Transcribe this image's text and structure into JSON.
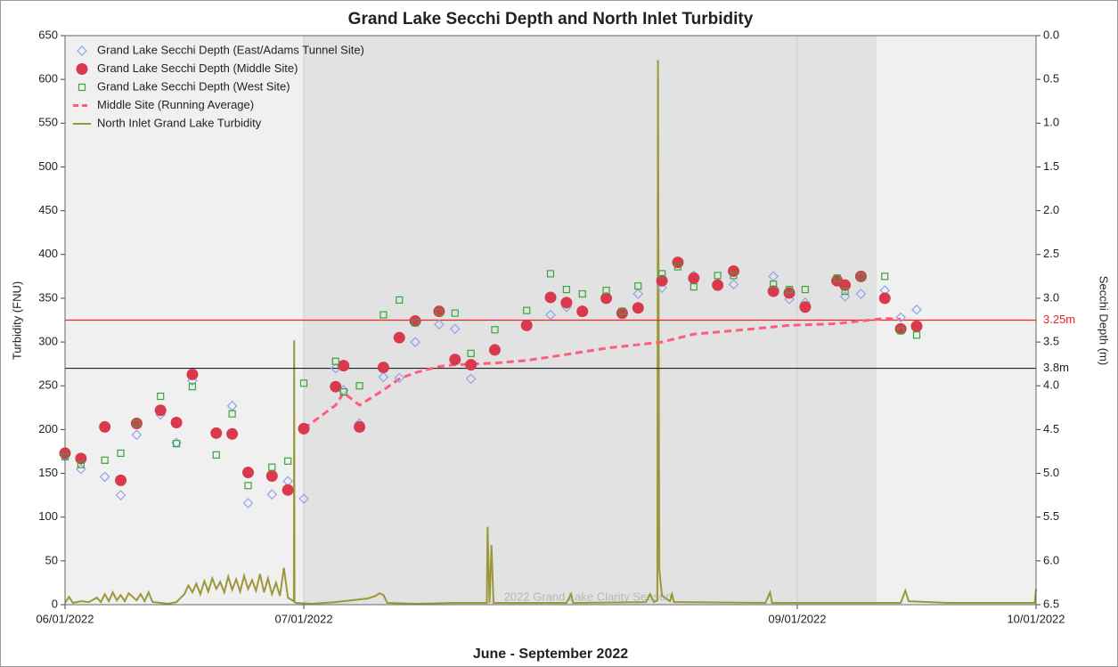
{
  "chart_data": {
    "type": "scatter",
    "title": "Grand Lake Secchi Depth and North Inlet Turbidity",
    "xlabel": "June - September 2022",
    "ylabel": "Turbidity (FNU)",
    "y2label": "Secchi Depth (m)",
    "annotation": "2022 Grand Lake Clarity Season",
    "xlim": [
      "2022-06-01",
      "2022-10-01"
    ],
    "xticks": [
      {
        "value": "2022-06-01",
        "label": "06/01/2022"
      },
      {
        "value": "2022-07-01",
        "label": "07/01/2022"
      },
      {
        "value": "2022-09-01",
        "label": "09/01/2022"
      },
      {
        "value": "2022-10-01",
        "label": "10/01/2022"
      }
    ],
    "xgrid": true,
    "ylim": [
      0,
      650
    ],
    "yticks": [
      0,
      50,
      100,
      150,
      200,
      250,
      300,
      350,
      400,
      450,
      500,
      550,
      600,
      650
    ],
    "y2lim": [
      0,
      6.5
    ],
    "y2_inverted": true,
    "y2ticks": [
      {
        "value": 0,
        "label": "0.0"
      },
      0.5,
      {
        "value": 1,
        "label": "1.0"
      },
      1.5,
      {
        "value": 2,
        "label": "2.0"
      },
      2.5,
      {
        "value": 3,
        "label": "3.0"
      },
      3.5,
      {
        "value": 4,
        "label": "4.0"
      },
      4.5,
      {
        "value": 5,
        "label": "5.0"
      },
      5.5,
      {
        "value": 6,
        "label": "6.0"
      },
      6.5
    ],
    "shaded_range": [
      "2022-07-01",
      "2022-09-11"
    ],
    "legend": "upper left",
    "reference_lines": [
      {
        "value": 3.25,
        "label": "3.25m",
        "color": "#e8262e",
        "axis": "y2"
      },
      {
        "value": 3.8,
        "label": "3.8m",
        "color": "#222222",
        "axis": "y2"
      }
    ],
    "series": [
      {
        "name": "Grand Lake Secchi Depth (East/Adams Tunnel Site)",
        "color": "#8ea3e8",
        "marker": "diamond",
        "axis": "y2",
        "x": [
          "2022-06-01",
          "2022-06-03",
          "2022-06-06",
          "2022-06-08",
          "2022-06-10",
          "2022-06-13",
          "2022-06-15",
          "2022-06-17",
          "2022-06-20",
          "2022-06-22",
          "2022-06-24",
          "2022-06-27",
          "2022-06-29",
          "2022-07-01",
          "2022-07-05",
          "2022-07-06",
          "2022-07-08",
          "2022-07-11",
          "2022-07-13",
          "2022-07-15",
          "2022-07-18",
          "2022-07-20",
          "2022-07-22",
          "2022-08-01",
          "2022-08-03",
          "2022-08-12",
          "2022-08-15",
          "2022-08-19",
          "2022-08-24",
          "2022-08-29",
          "2022-08-31",
          "2022-09-02",
          "2022-09-06",
          "2022-09-07",
          "2022-09-09",
          "2022-09-12",
          "2022-09-14",
          "2022-09-16"
        ],
        "values": [
          4.8,
          4.95,
          5.04,
          5.25,
          4.56,
          4.33,
          4.65,
          3.94,
          4.54,
          4.23,
          5.34,
          5.24,
          5.09,
          5.29,
          3.8,
          4.05,
          4.43,
          3.9,
          3.91,
          3.5,
          3.3,
          3.35,
          3.92,
          3.19,
          3.1,
          2.95,
          2.88,
          2.74,
          2.84,
          2.75,
          3.01,
          3.05,
          2.78,
          2.98,
          2.95,
          2.91,
          3.22,
          3.13
        ]
      },
      {
        "name": "Grand Lake Secchi Depth (Middle Site)",
        "color": "#d9394d",
        "marker": "circle",
        "axis": "y2",
        "x": [
          "2022-06-01",
          "2022-06-03",
          "2022-06-06",
          "2022-06-08",
          "2022-06-10",
          "2022-06-13",
          "2022-06-15",
          "2022-06-17",
          "2022-06-20",
          "2022-06-22",
          "2022-06-24",
          "2022-06-27",
          "2022-06-29",
          "2022-07-01",
          "2022-07-05",
          "2022-07-06",
          "2022-07-08",
          "2022-07-11",
          "2022-07-13",
          "2022-07-15",
          "2022-07-18",
          "2022-07-20",
          "2022-07-22",
          "2022-07-25",
          "2022-07-29",
          "2022-08-01",
          "2022-08-03",
          "2022-08-05",
          "2022-08-08",
          "2022-08-10",
          "2022-08-12",
          "2022-08-15",
          "2022-08-17",
          "2022-08-19",
          "2022-08-22",
          "2022-08-24",
          "2022-08-29",
          "2022-08-31",
          "2022-09-02",
          "2022-09-06",
          "2022-09-07",
          "2022-09-09",
          "2022-09-12",
          "2022-09-14",
          "2022-09-16"
        ],
        "values": [
          4.77,
          4.83,
          4.47,
          5.08,
          4.43,
          4.28,
          4.42,
          3.87,
          4.54,
          4.55,
          4.99,
          5.03,
          5.19,
          4.49,
          4.01,
          3.77,
          4.47,
          3.79,
          3.45,
          3.26,
          3.15,
          3.7,
          3.76,
          3.59,
          3.31,
          2.99,
          3.05,
          3.15,
          3.0,
          3.17,
          3.11,
          2.8,
          2.59,
          2.77,
          2.85,
          2.69,
          2.92,
          2.94,
          3.1,
          2.8,
          2.85,
          2.75,
          3.0,
          3.35,
          3.32
        ]
      },
      {
        "name": "Grand Lake Secchi Depth (West Site)",
        "color": "#3aa53a",
        "marker": "square",
        "axis": "y2",
        "x": [
          "2022-06-01",
          "2022-06-03",
          "2022-06-06",
          "2022-06-08",
          "2022-06-10",
          "2022-06-13",
          "2022-06-15",
          "2022-06-17",
          "2022-06-20",
          "2022-06-22",
          "2022-06-24",
          "2022-06-27",
          "2022-06-29",
          "2022-07-01",
          "2022-07-05",
          "2022-07-06",
          "2022-07-08",
          "2022-07-11",
          "2022-07-13",
          "2022-07-15",
          "2022-07-18",
          "2022-07-20",
          "2022-07-22",
          "2022-07-25",
          "2022-07-29",
          "2022-08-01",
          "2022-08-03",
          "2022-08-05",
          "2022-08-08",
          "2022-08-10",
          "2022-08-12",
          "2022-08-15",
          "2022-08-17",
          "2022-08-19",
          "2022-08-22",
          "2022-08-24",
          "2022-08-29",
          "2022-08-31",
          "2022-09-02",
          "2022-09-06",
          "2022-09-07",
          "2022-09-09",
          "2022-09-12",
          "2022-09-14",
          "2022-09-16"
        ],
        "values": [
          4.81,
          4.9,
          4.85,
          4.77,
          4.43,
          4.12,
          4.66,
          4.01,
          4.79,
          4.32,
          5.14,
          4.93,
          4.86,
          3.97,
          3.72,
          4.07,
          4.0,
          3.19,
          3.02,
          3.28,
          3.16,
          3.17,
          3.63,
          3.36,
          3.14,
          2.72,
          2.9,
          2.95,
          2.91,
          3.15,
          2.86,
          2.72,
          2.64,
          2.87,
          2.74,
          2.74,
          2.84,
          2.9,
          2.9,
          2.77,
          2.92,
          2.75,
          2.75,
          3.37,
          3.42
        ]
      },
      {
        "name": "Middle Site (Running Average)",
        "color": "#ff5c7c",
        "marker": "dashed-line",
        "axis": "y2",
        "x": [
          "2022-07-01",
          "2022-07-05",
          "2022-07-06",
          "2022-07-08",
          "2022-07-11",
          "2022-07-13",
          "2022-07-15",
          "2022-07-18",
          "2022-07-20",
          "2022-07-25",
          "2022-07-29",
          "2022-08-01",
          "2022-08-08",
          "2022-08-15",
          "2022-08-19",
          "2022-08-24",
          "2022-08-31",
          "2022-09-06",
          "2022-09-09",
          "2022-09-12",
          "2022-09-14"
        ],
        "values": [
          4.49,
          4.22,
          4.08,
          4.22,
          4.05,
          3.92,
          3.85,
          3.78,
          3.76,
          3.74,
          3.71,
          3.67,
          3.57,
          3.5,
          3.41,
          3.37,
          3.31,
          3.29,
          3.26,
          3.23,
          3.24
        ]
      },
      {
        "name": "North Inlet Grand Lake Turbidity",
        "color": "#9a9838",
        "marker": "line",
        "axis": "y",
        "x": [
          "2022-06-01",
          "2022-06-01T12:00",
          "2022-06-02",
          "2022-06-03",
          "2022-06-04",
          "2022-06-05",
          "2022-06-05T12:00",
          "2022-06-06",
          "2022-06-06T12:00",
          "2022-06-07",
          "2022-06-07T12:00",
          "2022-06-08",
          "2022-06-08T12:00",
          "2022-06-09",
          "2022-06-10",
          "2022-06-10T12:00",
          "2022-06-11",
          "2022-06-11T12:00",
          "2022-06-12",
          "2022-06-13",
          "2022-06-14",
          "2022-06-15",
          "2022-06-16",
          "2022-06-16T12:00",
          "2022-06-17",
          "2022-06-17T12:00",
          "2022-06-18",
          "2022-06-18T12:00",
          "2022-06-19",
          "2022-06-19T12:00",
          "2022-06-20",
          "2022-06-20T12:00",
          "2022-06-21",
          "2022-06-21T12:00",
          "2022-06-22",
          "2022-06-22T12:00",
          "2022-06-23",
          "2022-06-23T12:00",
          "2022-06-24",
          "2022-06-24T12:00",
          "2022-06-25",
          "2022-06-25T12:00",
          "2022-06-26",
          "2022-06-26T12:00",
          "2022-06-27",
          "2022-06-27T12:00",
          "2022-06-28",
          "2022-06-28T12:00",
          "2022-06-29",
          "2022-06-29T18:00",
          "2022-06-29T19:00",
          "2022-06-29T20:00",
          "2022-06-30",
          "2022-07-02",
          "2022-07-05",
          "2022-07-07",
          "2022-07-09",
          "2022-07-10",
          "2022-07-10T12:00",
          "2022-07-11",
          "2022-07-11T12:00",
          "2022-07-15",
          "2022-07-20",
          "2022-07-24",
          "2022-07-24T02:00",
          "2022-07-24T08:00",
          "2022-07-24T14:00",
          "2022-07-24T20:00",
          "2022-08-03",
          "2022-08-03T14:00",
          "2022-08-03T20:00",
          "2022-08-13",
          "2022-08-13T12:00",
          "2022-08-14",
          "2022-08-14T10:00",
          "2022-08-14T12:00",
          "2022-08-14T16:00",
          "2022-08-15",
          "2022-08-16",
          "2022-08-16T06:00",
          "2022-08-16T12:00",
          "2022-08-28",
          "2022-08-28T14:00",
          "2022-08-28T20:00",
          "2022-09-14",
          "2022-09-14T14:00",
          "2022-09-15",
          "2022-09-20",
          "2022-09-30T20:00",
          "2022-10-01"
        ],
        "values": [
          2,
          9,
          2,
          4,
          3,
          8,
          3,
          12,
          4,
          14,
          5,
          11,
          4,
          13,
          5,
          12,
          4,
          14,
          3,
          2,
          1,
          3,
          12,
          22,
          14,
          24,
          12,
          27,
          15,
          30,
          18,
          26,
          14,
          32,
          17,
          29,
          15,
          33,
          18,
          28,
          16,
          35,
          14,
          30,
          12,
          25,
          10,
          42,
          8,
          4,
          302,
          3,
          2,
          1,
          3,
          5,
          7,
          10,
          13,
          11,
          2,
          1,
          2,
          2,
          89,
          2,
          68,
          2,
          2,
          12,
          2,
          3,
          12,
          3,
          5,
          622,
          40,
          10,
          4,
          12,
          3,
          2,
          14,
          2,
          2,
          16,
          4,
          2,
          2,
          18
        ]
      }
    ]
  }
}
